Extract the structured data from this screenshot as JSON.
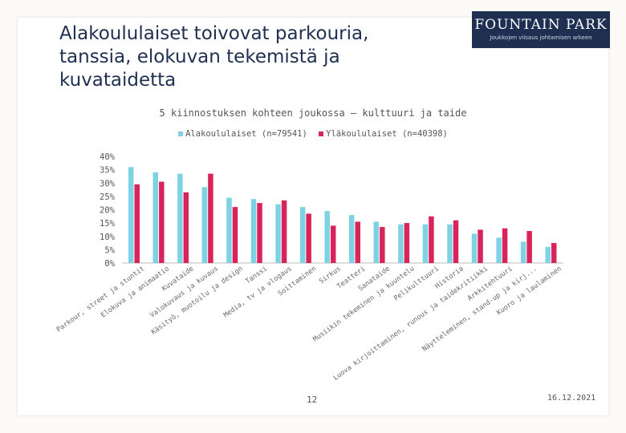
{
  "slide": {
    "title": "Alakoululaiset toivovat parkouria, tanssia, elokuvan tekemistä ja kuvataidetta",
    "page_number": "12",
    "date": "16.12.2021"
  },
  "logo": {
    "name": "FOUNTAIN PARK",
    "tagline": "Joukkojen viisaus johtamisen arkeen"
  },
  "colors": {
    "series1": "#7dd3e3",
    "series2": "#d8245a",
    "axis": "#bdbdbd",
    "title": "#1f2f52"
  },
  "chart_data": {
    "type": "bar",
    "title": "5 kiinnostuksen kohteen joukossa – kulttuuri ja taide",
    "xlabel": "",
    "ylabel": "",
    "ylim": [
      0,
      0.4
    ],
    "yticks": [
      "0%",
      "5%",
      "10%",
      "15%",
      "20%",
      "25%",
      "30%",
      "35%",
      "40%"
    ],
    "grid": false,
    "legend_position": "top",
    "categories": [
      "Parkour, street ja stuntit",
      "Elokuva ja animaatio",
      "Kuvataide",
      "Valokuvaus ja kuvaus",
      "Käsityö, muotoilu ja design",
      "Tanssi",
      "Media, tv ja vlogaus",
      "Soittaminen",
      "Sirkus",
      "Teatteri",
      "Sanataide",
      "Musiikin tekeminen ja kuuntelu",
      "Pelikulttuuri",
      "Historia",
      "Luova kirjoittaminen, runous ja taidekritiikki",
      "Arkkitehtuuri",
      "Näytteleminen, stand-up ja kirj...",
      "Kuoro ja laulaminen"
    ],
    "series": [
      {
        "name": "Alakoululaiset (n=79541)",
        "values": [
          0.36,
          0.34,
          0.335,
          0.285,
          0.245,
          0.24,
          0.22,
          0.21,
          0.195,
          0.18,
          0.155,
          0.145,
          0.145,
          0.145,
          0.11,
          0.095,
          0.08,
          0.06
        ]
      },
      {
        "name": "Yläkoululaiset (n=40398)",
        "values": [
          0.295,
          0.305,
          0.265,
          0.335,
          0.21,
          0.225,
          0.235,
          0.185,
          0.14,
          0.155,
          0.135,
          0.15,
          0.175,
          0.16,
          0.125,
          0.13,
          0.12,
          0.075
        ]
      }
    ]
  }
}
